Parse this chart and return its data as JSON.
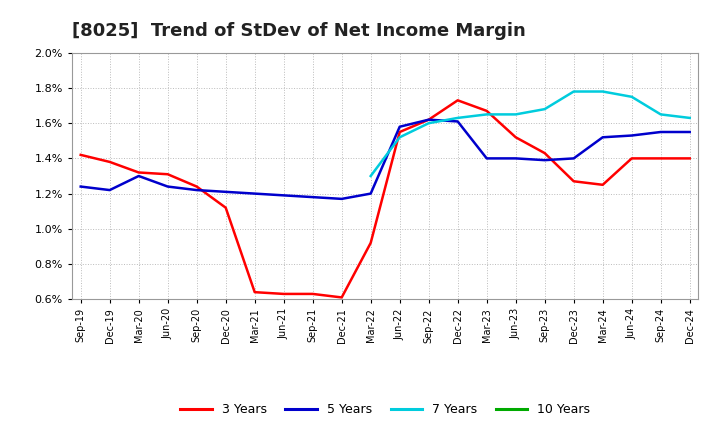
{
  "title": "[8025]  Trend of StDev of Net Income Margin",
  "ylim": [
    0.006,
    0.02
  ],
  "yticks": [
    0.006,
    0.008,
    0.01,
    0.012,
    0.014,
    0.016,
    0.018,
    0.02
  ],
  "x_labels": [
    "Sep-19",
    "Dec-19",
    "Mar-20",
    "Jun-20",
    "Sep-20",
    "Dec-20",
    "Mar-21",
    "Jun-21",
    "Sep-21",
    "Dec-21",
    "Mar-22",
    "Jun-22",
    "Sep-22",
    "Dec-22",
    "Mar-23",
    "Jun-23",
    "Sep-23",
    "Dec-23",
    "Mar-24",
    "Jun-24",
    "Sep-24",
    "Dec-24"
  ],
  "series_3y": [
    0.0142,
    0.0138,
    0.0132,
    0.0131,
    0.0124,
    0.0112,
    0.0064,
    0.0063,
    0.0063,
    0.0061,
    0.0092,
    0.0155,
    0.0162,
    0.0173,
    0.0167,
    0.0152,
    0.0143,
    0.0127,
    0.0125,
    0.014,
    0.014,
    0.014
  ],
  "series_5y": [
    0.0124,
    0.0122,
    0.013,
    0.0124,
    0.0122,
    0.0121,
    0.012,
    0.0119,
    0.0118,
    0.0117,
    0.012,
    0.0158,
    0.0162,
    0.0161,
    0.014,
    0.014,
    0.0139,
    0.014,
    0.0152,
    0.0153,
    0.0155,
    0.0155
  ],
  "series_7y": [
    null,
    null,
    null,
    null,
    null,
    null,
    null,
    null,
    null,
    null,
    0.013,
    0.0152,
    0.016,
    0.0163,
    0.0165,
    0.0165,
    0.0168,
    0.0178,
    0.0178,
    0.0175,
    0.0165,
    0.0163
  ],
  "series_10y": [
    null,
    null,
    null,
    null,
    null,
    null,
    null,
    null,
    null,
    null,
    null,
    null,
    null,
    null,
    null,
    null,
    null,
    null,
    null,
    null,
    null,
    null
  ],
  "color_3y": "#FF0000",
  "color_5y": "#0000CC",
  "color_7y": "#00CCDD",
  "color_10y": "#00AA00",
  "background_color": "#FFFFFF",
  "grid_color": "#BBBBBB",
  "title_fontsize": 13,
  "legend_items": [
    "3 Years",
    "5 Years",
    "7 Years",
    "10 Years"
  ],
  "legend_colors": [
    "#FF0000",
    "#0000CC",
    "#00CCDD",
    "#00AA00"
  ]
}
